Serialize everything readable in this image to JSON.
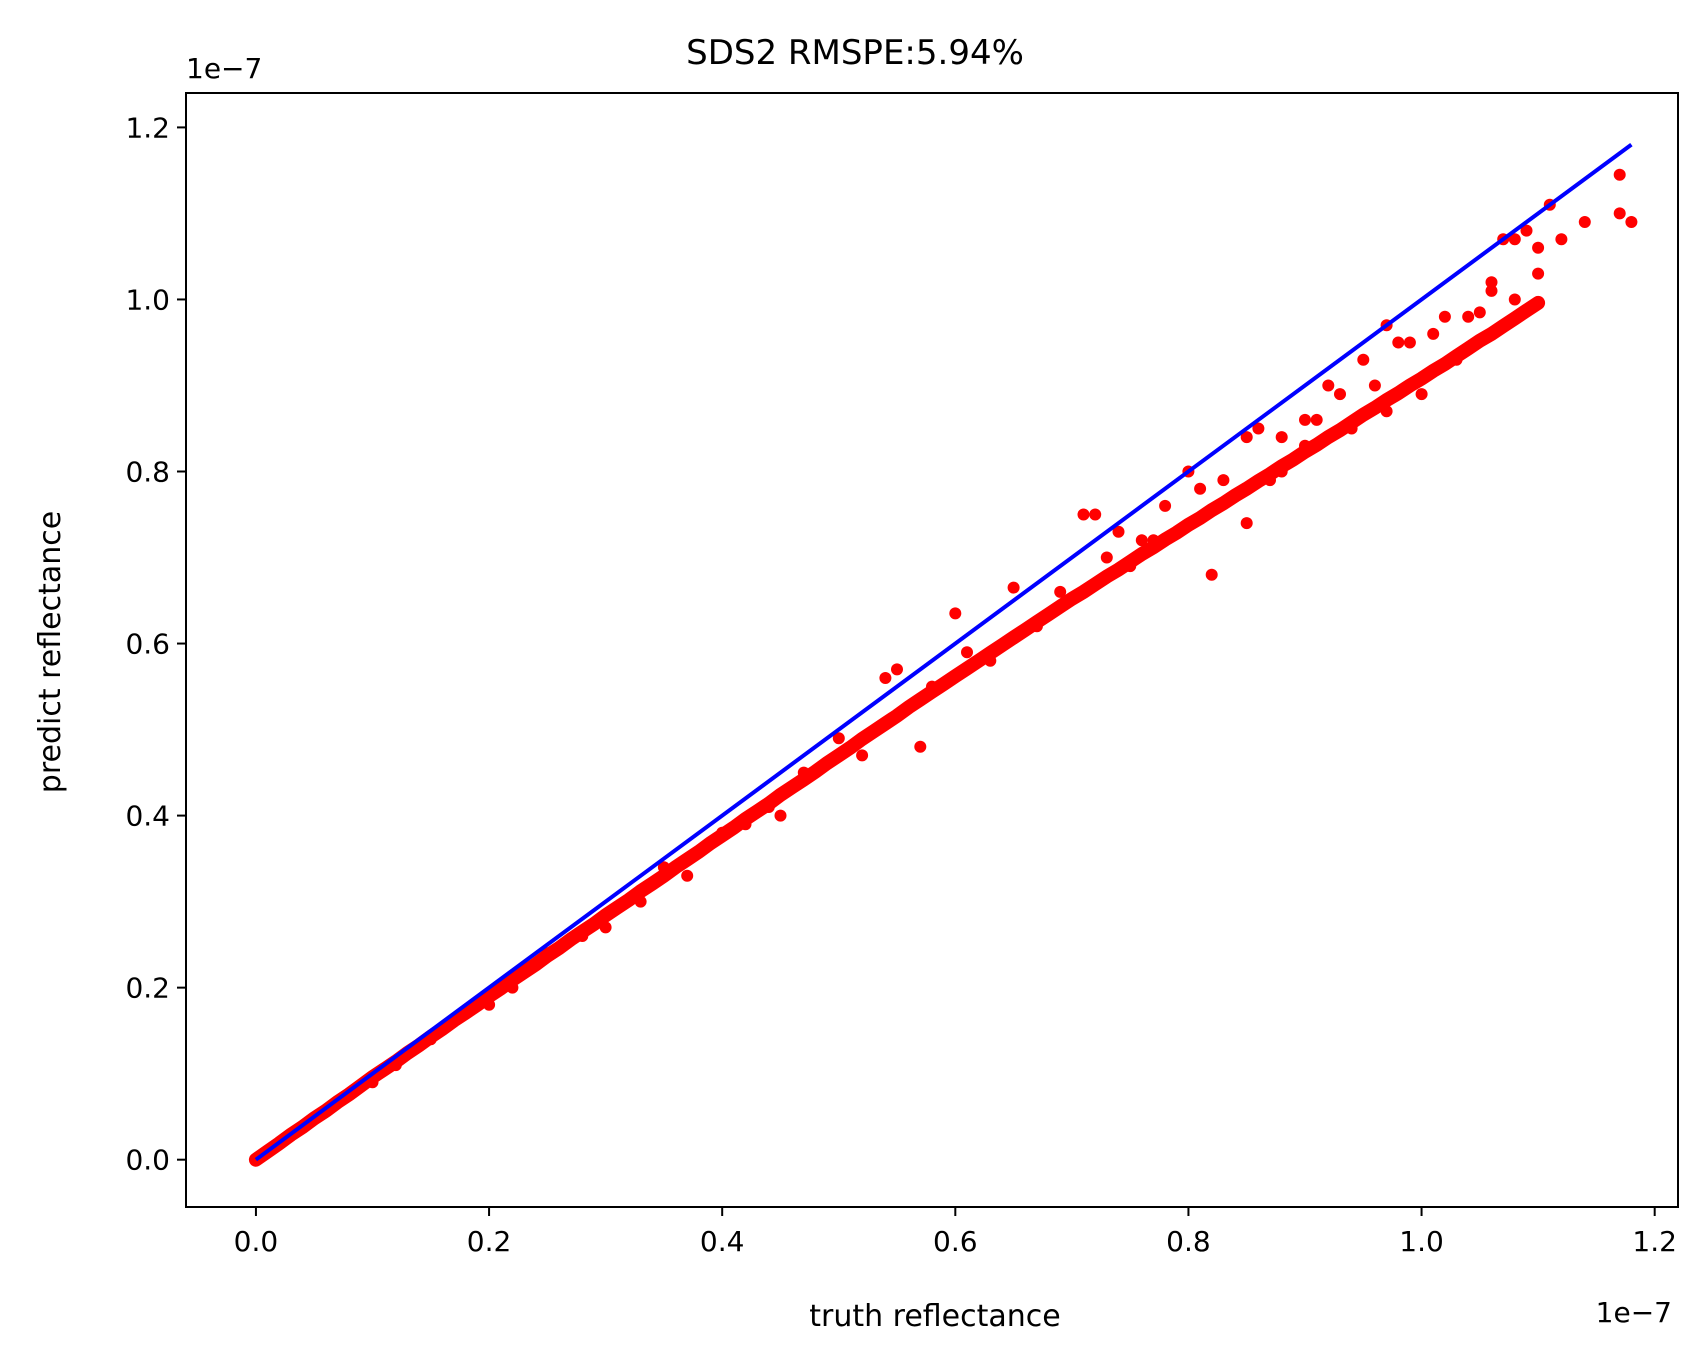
{
  "chart_data": {
    "type": "scatter",
    "title": "SDS2 RMSPE:5.94%",
    "xlabel": "truth reflectance",
    "ylabel": "predict reflectance",
    "x_offset_label": "1e−7",
    "y_offset_label": "1e−7",
    "xlim": [
      -0.06,
      1.22
    ],
    "ylim": [
      -0.055,
      1.24
    ],
    "xticks": [
      0.0,
      0.2,
      0.4,
      0.6,
      0.8,
      1.0,
      1.2
    ],
    "xtick_labels": [
      "0.0",
      "0.2",
      "0.4",
      "0.6",
      "0.8",
      "1.0",
      "1.2"
    ],
    "yticks": [
      0.0,
      0.2,
      0.4,
      0.6,
      0.8,
      1.0,
      1.2
    ],
    "ytick_labels": [
      "0.0",
      "0.2",
      "0.4",
      "0.6",
      "0.8",
      "1.0",
      "1.2"
    ],
    "grid": false,
    "units_note": "axis values multiplied by 1e-7",
    "series": [
      {
        "kind": "scatter",
        "color": "#ff0000",
        "points": [
          [
            0.0,
            0.0
          ],
          [
            0.01,
            0.0095
          ],
          [
            0.02,
            0.019
          ],
          [
            0.03,
            0.029
          ],
          [
            0.04,
            0.038
          ],
          [
            0.05,
            0.048
          ],
          [
            0.06,
            0.057
          ],
          [
            0.07,
            0.067
          ],
          [
            0.08,
            0.076
          ],
          [
            0.09,
            0.086
          ],
          [
            0.1,
            0.096
          ],
          [
            0.11,
            0.105
          ],
          [
            0.12,
            0.114
          ],
          [
            0.13,
            0.124
          ],
          [
            0.14,
            0.133
          ],
          [
            0.15,
            0.143
          ],
          [
            0.16,
            0.152
          ],
          [
            0.17,
            0.162
          ],
          [
            0.18,
            0.171
          ],
          [
            0.19,
            0.18
          ],
          [
            0.2,
            0.19
          ],
          [
            0.21,
            0.199
          ],
          [
            0.22,
            0.209
          ],
          [
            0.23,
            0.218
          ],
          [
            0.24,
            0.227
          ],
          [
            0.25,
            0.237
          ],
          [
            0.26,
            0.246
          ],
          [
            0.27,
            0.256
          ],
          [
            0.28,
            0.265
          ],
          [
            0.29,
            0.274
          ],
          [
            0.3,
            0.284
          ],
          [
            0.31,
            0.293
          ],
          [
            0.32,
            0.302
          ],
          [
            0.33,
            0.312
          ],
          [
            0.34,
            0.321
          ],
          [
            0.35,
            0.33
          ],
          [
            0.36,
            0.34
          ],
          [
            0.37,
            0.349
          ],
          [
            0.38,
            0.358
          ],
          [
            0.39,
            0.368
          ],
          [
            0.4,
            0.377
          ],
          [
            0.41,
            0.386
          ],
          [
            0.42,
            0.396
          ],
          [
            0.43,
            0.405
          ],
          [
            0.44,
            0.414
          ],
          [
            0.45,
            0.424
          ],
          [
            0.46,
            0.433
          ],
          [
            0.47,
            0.442
          ],
          [
            0.48,
            0.451
          ],
          [
            0.49,
            0.461
          ],
          [
            0.5,
            0.47
          ],
          [
            0.51,
            0.479
          ],
          [
            0.52,
            0.489
          ],
          [
            0.53,
            0.498
          ],
          [
            0.54,
            0.507
          ],
          [
            0.55,
            0.516
          ],
          [
            0.56,
            0.526
          ],
          [
            0.57,
            0.535
          ],
          [
            0.58,
            0.544
          ],
          [
            0.59,
            0.553
          ],
          [
            0.6,
            0.562
          ],
          [
            0.61,
            0.571
          ],
          [
            0.62,
            0.58
          ],
          [
            0.63,
            0.589
          ],
          [
            0.64,
            0.598
          ],
          [
            0.65,
            0.607
          ],
          [
            0.66,
            0.616
          ],
          [
            0.67,
            0.625
          ],
          [
            0.68,
            0.634
          ],
          [
            0.69,
            0.643
          ],
          [
            0.7,
            0.652
          ],
          [
            0.71,
            0.66
          ],
          [
            0.72,
            0.669
          ],
          [
            0.73,
            0.678
          ],
          [
            0.74,
            0.686
          ],
          [
            0.75,
            0.695
          ],
          [
            0.76,
            0.704
          ],
          [
            0.77,
            0.712
          ],
          [
            0.78,
            0.721
          ],
          [
            0.79,
            0.729
          ],
          [
            0.8,
            0.738
          ],
          [
            0.81,
            0.746
          ],
          [
            0.82,
            0.755
          ],
          [
            0.83,
            0.763
          ],
          [
            0.84,
            0.772
          ],
          [
            0.85,
            0.78
          ],
          [
            0.86,
            0.789
          ],
          [
            0.87,
            0.797
          ],
          [
            0.88,
            0.806
          ],
          [
            0.89,
            0.814
          ],
          [
            0.9,
            0.823
          ],
          [
            0.91,
            0.831
          ],
          [
            0.92,
            0.84
          ],
          [
            0.93,
            0.848
          ],
          [
            0.94,
            0.857
          ],
          [
            0.95,
            0.866
          ],
          [
            0.96,
            0.874
          ],
          [
            0.97,
            0.883
          ],
          [
            0.98,
            0.891
          ],
          [
            0.99,
            0.9
          ],
          [
            1.0,
            0.908
          ],
          [
            1.01,
            0.917
          ],
          [
            1.02,
            0.925
          ],
          [
            1.03,
            0.934
          ],
          [
            1.04,
            0.943
          ],
          [
            1.05,
            0.952
          ],
          [
            1.06,
            0.96
          ],
          [
            1.07,
            0.969
          ],
          [
            1.08,
            0.978
          ],
          [
            1.09,
            0.987
          ],
          [
            1.1,
            0.996
          ],
          [
            0.54,
            0.56
          ],
          [
            0.55,
            0.57
          ],
          [
            0.6,
            0.635
          ],
          [
            0.65,
            0.665
          ],
          [
            0.71,
            0.75
          ],
          [
            0.72,
            0.75
          ],
          [
            0.73,
            0.7
          ],
          [
            0.75,
            0.69
          ],
          [
            0.77,
            0.72
          ],
          [
            0.8,
            0.8
          ],
          [
            0.81,
            0.78
          ],
          [
            0.82,
            0.68
          ],
          [
            0.85,
            0.74
          ],
          [
            0.85,
            0.84
          ],
          [
            0.86,
            0.85
          ],
          [
            0.87,
            0.79
          ],
          [
            0.88,
            0.84
          ],
          [
            0.9,
            0.86
          ],
          [
            0.9,
            0.83
          ],
          [
            0.91,
            0.86
          ],
          [
            0.93,
            0.89
          ],
          [
            0.94,
            0.85
          ],
          [
            0.95,
            0.93
          ],
          [
            0.96,
            0.9
          ],
          [
            0.97,
            0.97
          ],
          [
            0.98,
            0.95
          ],
          [
            0.99,
            0.95
          ],
          [
            1.0,
            0.89
          ],
          [
            1.01,
            0.96
          ],
          [
            1.03,
            0.93
          ],
          [
            1.04,
            0.98
          ],
          [
            1.05,
            0.985
          ],
          [
            1.06,
            1.02
          ],
          [
            1.07,
            1.07
          ],
          [
            1.08,
            1.07
          ],
          [
            1.09,
            1.08
          ],
          [
            1.1,
            1.06
          ],
          [
            1.11,
            1.11
          ],
          [
            1.12,
            1.07
          ],
          [
            1.14,
            1.09
          ],
          [
            1.17,
            1.145
          ],
          [
            1.17,
            1.1
          ],
          [
            1.18,
            1.09
          ],
          [
            1.06,
            1.01
          ],
          [
            1.08,
            1.0
          ],
          [
            1.1,
            1.03
          ],
          [
            1.02,
            0.98
          ],
          [
            0.99,
            0.9
          ],
          [
            0.97,
            0.87
          ],
          [
            0.92,
            0.9
          ],
          [
            0.88,
            0.8
          ],
          [
            0.83,
            0.79
          ],
          [
            0.78,
            0.76
          ],
          [
            0.76,
            0.72
          ],
          [
            0.74,
            0.73
          ],
          [
            0.69,
            0.66
          ],
          [
            0.67,
            0.62
          ],
          [
            0.63,
            0.58
          ],
          [
            0.61,
            0.59
          ],
          [
            0.58,
            0.55
          ],
          [
            0.57,
            0.48
          ],
          [
            0.52,
            0.47
          ],
          [
            0.5,
            0.49
          ],
          [
            0.47,
            0.45
          ],
          [
            0.45,
            0.4
          ],
          [
            0.44,
            0.41
          ],
          [
            0.42,
            0.39
          ],
          [
            0.4,
            0.38
          ],
          [
            0.37,
            0.33
          ],
          [
            0.35,
            0.34
          ],
          [
            0.33,
            0.3
          ],
          [
            0.3,
            0.27
          ],
          [
            0.28,
            0.26
          ],
          [
            0.25,
            0.24
          ],
          [
            0.22,
            0.2
          ],
          [
            0.2,
            0.18
          ],
          [
            0.18,
            0.17
          ],
          [
            0.15,
            0.14
          ],
          [
            0.12,
            0.11
          ],
          [
            0.1,
            0.09
          ]
        ]
      },
      {
        "kind": "line",
        "color": "#0000ff",
        "x": [
          0.0,
          1.18
        ],
        "y": [
          0.0,
          1.18
        ]
      }
    ]
  }
}
